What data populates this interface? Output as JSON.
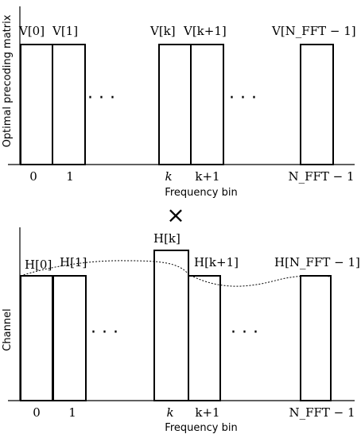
{
  "top_panel": {
    "y_axis_label": "Optimal precoding matrix",
    "x_axis_label": "Frequency bin",
    "bar_labels": [
      "V[0]",
      "V[1]",
      "V[k]",
      "V[k+1]",
      "V[N_FFT − 1]"
    ],
    "tick_labels": [
      "0",
      "1",
      "k",
      "k+1",
      "N_FFT − 1"
    ],
    "ellipsis": [
      "·  ·  ·",
      "·  ·  ·"
    ]
  },
  "operator": "×",
  "bottom_panel": {
    "y_axis_label": "Channel",
    "x_axis_label": "Frequency bin",
    "bar_labels": [
      "H[0]",
      "H[1]",
      "H[k]",
      "H[k+1]",
      "H[N_FFT − 1]"
    ],
    "tick_labels": [
      "0",
      "1",
      "k",
      "k+1",
      "N_FFT − 1"
    ],
    "ellipsis": [
      "·  ·  ·",
      "·  ·  ·"
    ]
  }
}
